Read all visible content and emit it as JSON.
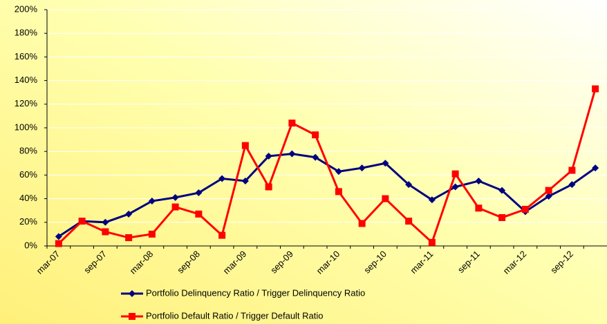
{
  "chart_data": {
    "type": "line",
    "categories": [
      "mar-07",
      null,
      "sep-07",
      null,
      "mar-08",
      null,
      "sep-08",
      null,
      "mar-09",
      null,
      "sep-09",
      null,
      "mar-10",
      null,
      "sep-10",
      null,
      "mar-11",
      null,
      "sep-11",
      null,
      "mar-12",
      null,
      "sep-12",
      null
    ],
    "series": [
      {
        "name": "Portfolio Delinquency Ratio / Trigger Delinquency Ratio",
        "color": "#000080",
        "marker": "diamond",
        "values": [
          8,
          21,
          20,
          27,
          38,
          41,
          45,
          57,
          55,
          76,
          78,
          75,
          63,
          66,
          70,
          52,
          39,
          50,
          55,
          47,
          29,
          42,
          52,
          66
        ]
      },
      {
        "name": "Portfolio Default Ratio / Trigger Default Ratio",
        "color": "#ff0000",
        "marker": "square",
        "values": [
          2,
          21,
          12,
          7,
          10,
          33,
          27,
          9,
          85,
          50,
          104,
          94,
          46,
          19,
          40,
          21,
          3,
          61,
          32,
          24,
          31,
          47,
          64,
          133
        ]
      }
    ],
    "ylim": [
      0,
      200
    ],
    "yticks": [
      {
        "value": 0,
        "label": "0%"
      },
      {
        "value": 20,
        "label": "20%"
      },
      {
        "value": 40,
        "label": "40%"
      },
      {
        "value": 60,
        "label": "60%"
      },
      {
        "value": 80,
        "label": "80%"
      },
      {
        "value": 100,
        "label": "100%"
      },
      {
        "value": 120,
        "label": "120%"
      },
      {
        "value": 140,
        "label": "140%"
      },
      {
        "value": 160,
        "label": "160%"
      },
      {
        "value": 180,
        "label": "180%"
      },
      {
        "value": 200,
        "label": "200%"
      }
    ],
    "grid": true
  }
}
